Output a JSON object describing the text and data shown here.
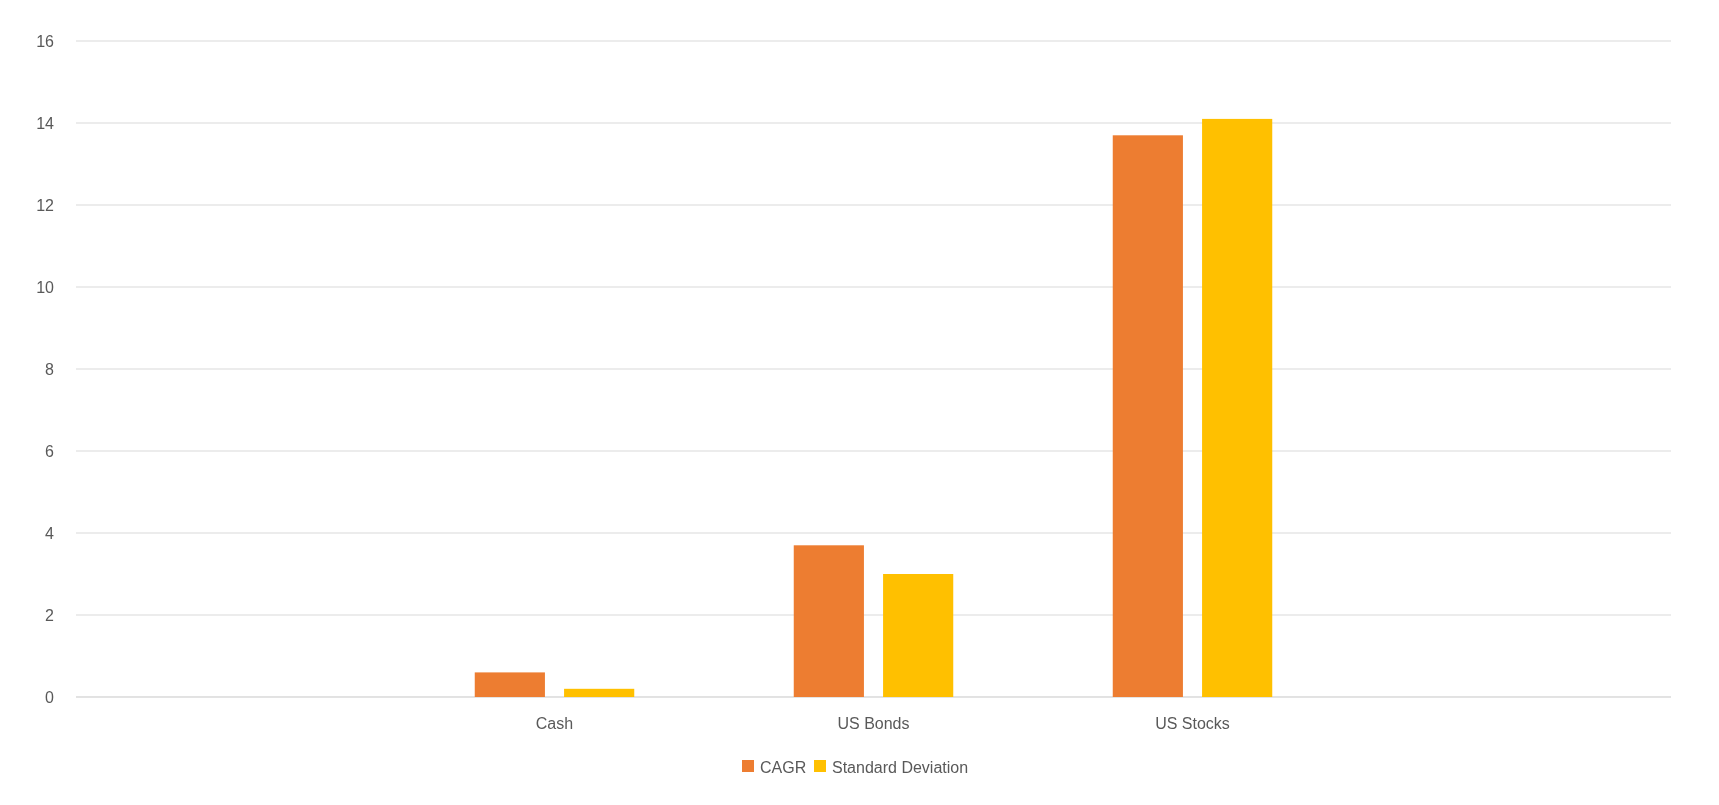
{
  "chart_data": {
    "type": "bar",
    "categories": [
      null,
      "Cash",
      "US Bonds",
      "US Stocks",
      null
    ],
    "series": [
      {
        "name": "CAGR",
        "color": "#ed7d31",
        "values": [
          null,
          0.6,
          3.7,
          13.7,
          null
        ]
      },
      {
        "name": "Standard Deviation",
        "color": "#ffc000",
        "values": [
          null,
          0.2,
          3.0,
          14.1,
          null
        ]
      }
    ],
    "ylim": [
      0,
      16
    ],
    "yticks": [
      0,
      2,
      4,
      6,
      8,
      10,
      12,
      14,
      16
    ],
    "grid": "y",
    "legend": "bottom"
  }
}
